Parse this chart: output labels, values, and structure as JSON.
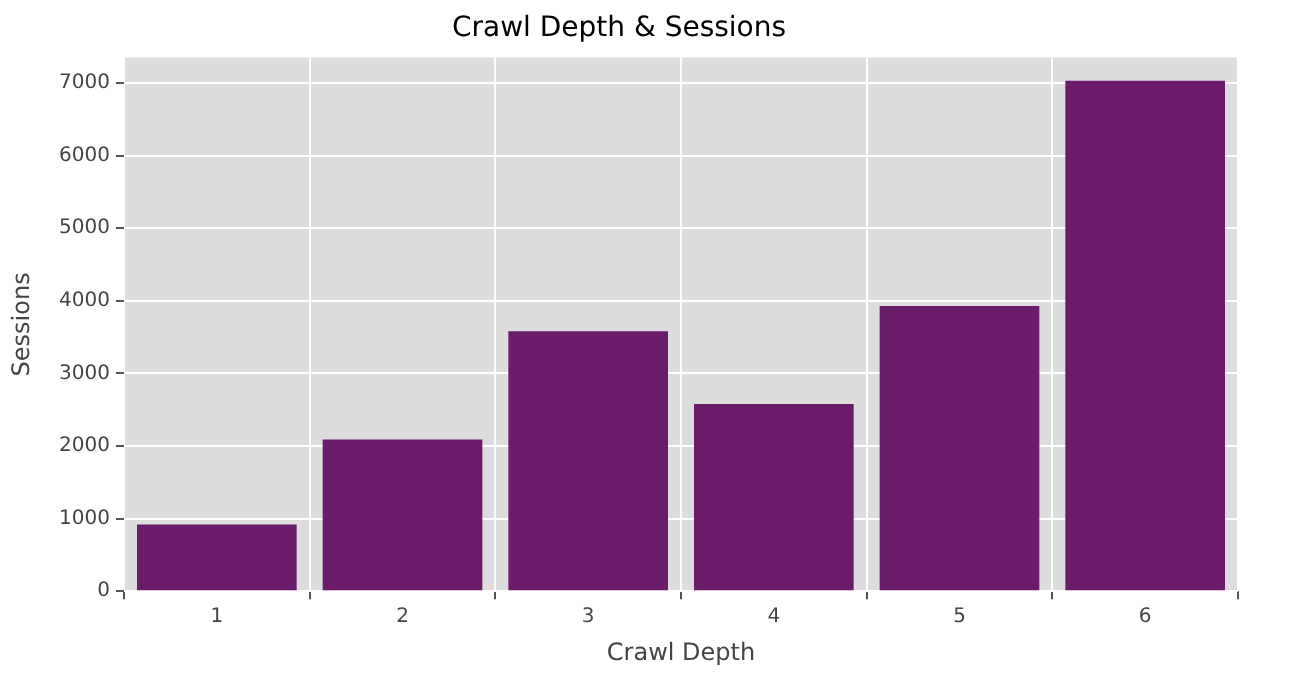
{
  "chart_data": {
    "type": "bar",
    "title": "Crawl Depth & Sessions",
    "xlabel": "Crawl Depth",
    "ylabel": "Sessions",
    "categories": [
      "1",
      "2",
      "3",
      "4",
      "5",
      "6"
    ],
    "values": [
      920,
      2090,
      3580,
      2580,
      3930,
      7030
    ],
    "color": "#6a1b6a",
    "ylim": [
      0,
      7350
    ],
    "yticks": [
      0,
      1000,
      2000,
      3000,
      4000,
      5000,
      6000,
      7000
    ],
    "grid": true
  }
}
